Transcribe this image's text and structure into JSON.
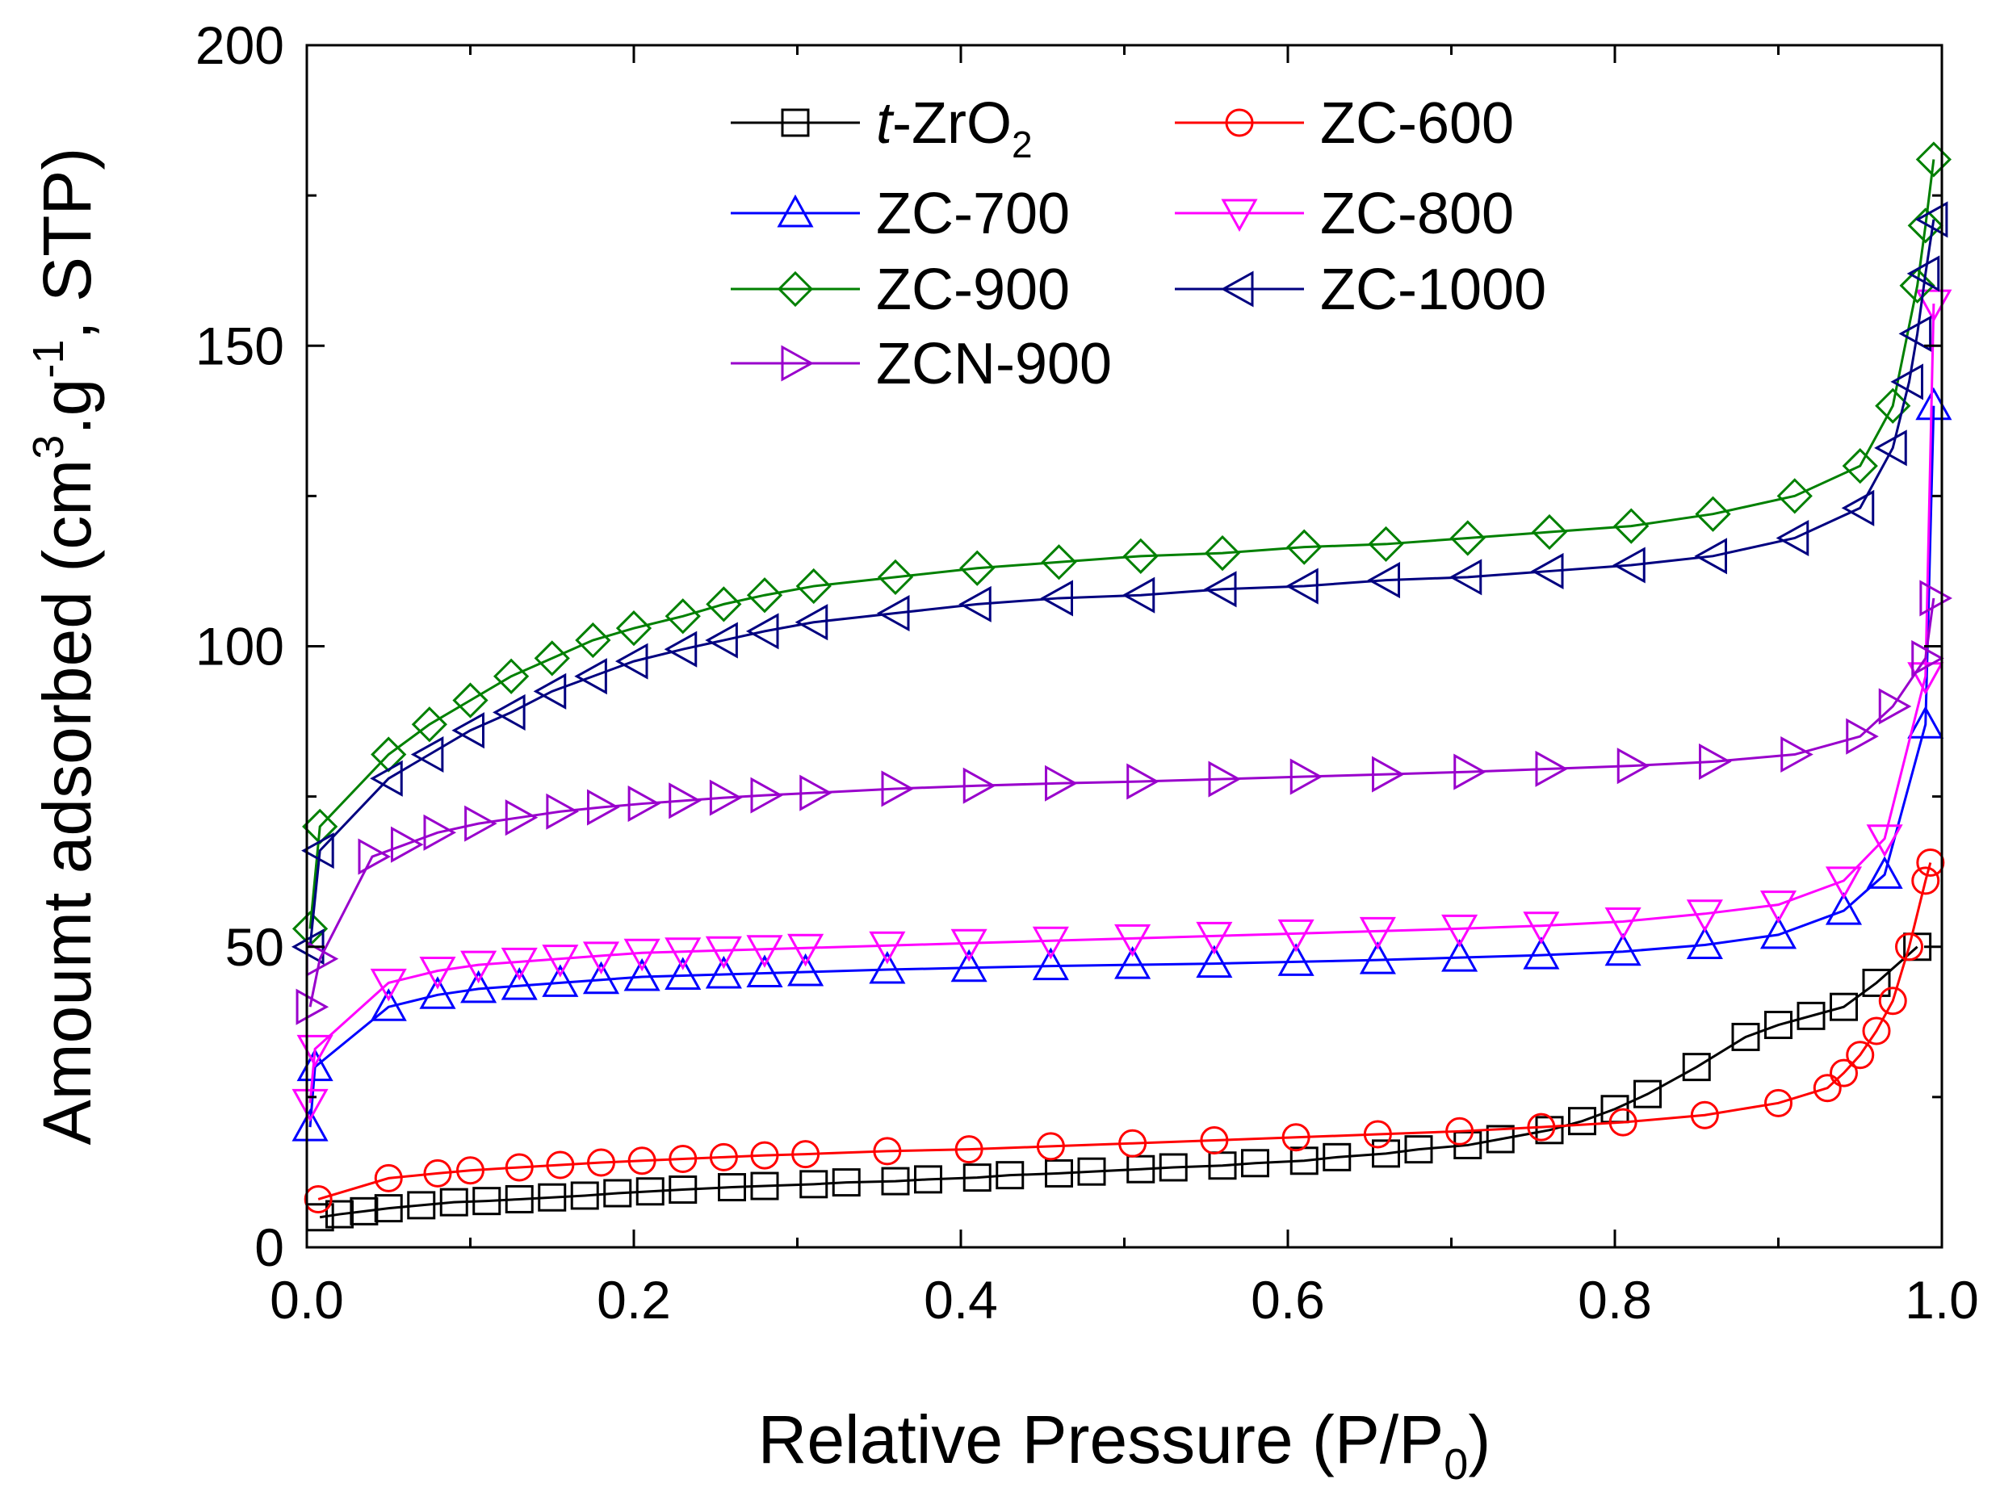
{
  "chart_data": {
    "type": "scatter",
    "title": "",
    "xlabel": "Relative Pressure (P/P0)",
    "xlabel_parts": {
      "main": "Relative Pressure (P/P",
      "sub": "0",
      "tail": ")"
    },
    "ylabel": "Amoumt adsorbed (cm3.g-1, STP)",
    "ylabel_parts": {
      "p1": "Amoumt adsorbed (cm",
      "sup1": "3",
      "p2": ".g",
      "sup2": "-1",
      "p3": ", STP)"
    },
    "xlim": [
      0.0,
      1.0
    ],
    "ylim": [
      0,
      200
    ],
    "x_ticks": [
      0.0,
      0.2,
      0.4,
      0.6,
      0.8,
      1.0
    ],
    "x_tick_labels": [
      "0.0",
      "0.2",
      "0.4",
      "0.6",
      "0.8",
      "1.0"
    ],
    "y_ticks": [
      0,
      50,
      100,
      150,
      200
    ],
    "y_tick_labels": [
      "0",
      "50",
      "100",
      "150",
      "200"
    ],
    "grid": false,
    "legend_position": "top",
    "series": [
      {
        "name": "t-ZrO2",
        "label_main": "-ZrO",
        "label_italic": "t",
        "label_sub": "2",
        "color": "#000000",
        "marker": "square",
        "x": [
          0.008,
          0.02,
          0.035,
          0.05,
          0.07,
          0.09,
          0.11,
          0.13,
          0.15,
          0.17,
          0.19,
          0.21,
          0.23,
          0.26,
          0.28,
          0.31,
          0.33,
          0.36,
          0.38,
          0.41,
          0.43,
          0.46,
          0.48,
          0.51,
          0.53,
          0.56,
          0.58,
          0.61,
          0.63,
          0.66,
          0.68,
          0.71,
          0.73,
          0.76,
          0.78,
          0.8,
          0.82,
          0.85,
          0.88,
          0.9,
          0.92,
          0.94,
          0.96,
          0.985
        ],
        "y": [
          5,
          5.5,
          6,
          6.5,
          7,
          7.5,
          7.7,
          8,
          8.3,
          8.6,
          9,
          9.3,
          9.6,
          10,
          10.2,
          10.5,
          10.8,
          11,
          11.3,
          11.6,
          12,
          12.3,
          12.6,
          13,
          13.3,
          13.6,
          14,
          14.4,
          15,
          15.6,
          16.3,
          17,
          18,
          19.5,
          21,
          23,
          25.5,
          30,
          35,
          37,
          38.5,
          40,
          44,
          50
        ]
      },
      {
        "name": "ZC-600",
        "label_main": "ZC-600",
        "color": "#ff0000",
        "marker": "circle",
        "x": [
          0.007,
          0.05,
          0.08,
          0.1,
          0.13,
          0.155,
          0.18,
          0.205,
          0.23,
          0.255,
          0.28,
          0.305,
          0.355,
          0.405,
          0.455,
          0.505,
          0.555,
          0.605,
          0.655,
          0.705,
          0.755,
          0.805,
          0.855,
          0.9,
          0.93,
          0.94,
          0.95,
          0.96,
          0.97,
          0.98,
          0.99,
          0.993
        ],
        "y": [
          8,
          11.5,
          12.3,
          12.8,
          13.3,
          13.7,
          14.1,
          14.4,
          14.7,
          15,
          15.3,
          15.5,
          16,
          16.3,
          16.8,
          17.3,
          17.8,
          18.3,
          18.8,
          19.3,
          20,
          20.8,
          22,
          24,
          26.5,
          29,
          32,
          36,
          41,
          50,
          61,
          64
        ]
      },
      {
        "name": "ZC-700",
        "label_main": "ZC-700",
        "color": "#0000ff",
        "marker": "triangle-up",
        "x": [
          0.002,
          0.005,
          0.05,
          0.08,
          0.105,
          0.13,
          0.155,
          0.18,
          0.205,
          0.23,
          0.255,
          0.28,
          0.305,
          0.355,
          0.405,
          0.455,
          0.505,
          0.555,
          0.605,
          0.655,
          0.705,
          0.755,
          0.805,
          0.855,
          0.9,
          0.94,
          0.965,
          0.99,
          0.995
        ],
        "y": [
          20,
          30,
          40,
          42,
          43,
          43.5,
          44,
          44.5,
          45,
          45.2,
          45.4,
          45.6,
          45.8,
          46.2,
          46.5,
          46.8,
          47,
          47.2,
          47.5,
          47.8,
          48.2,
          48.6,
          49.2,
          50.3,
          52,
          56,
          62,
          87,
          140
        ]
      },
      {
        "name": "ZC-800",
        "label_main": "ZC-800",
        "color": "#ff00ff",
        "marker": "triangle-down",
        "x": [
          0.002,
          0.005,
          0.05,
          0.08,
          0.105,
          0.13,
          0.155,
          0.18,
          0.205,
          0.23,
          0.255,
          0.28,
          0.305,
          0.355,
          0.405,
          0.455,
          0.505,
          0.555,
          0.605,
          0.655,
          0.705,
          0.755,
          0.805,
          0.855,
          0.9,
          0.94,
          0.965,
          0.99,
          0.995
        ],
        "y": [
          24,
          33,
          44,
          46,
          47,
          47.5,
          48,
          48.5,
          49,
          49.2,
          49.4,
          49.6,
          49.8,
          50.2,
          50.6,
          51,
          51.4,
          51.8,
          52.2,
          52.6,
          53,
          53.5,
          54.2,
          55.5,
          57,
          61,
          68,
          95,
          157
        ]
      },
      {
        "name": "ZC-900",
        "label_main": "ZC-900",
        "color": "#008000",
        "marker": "diamond",
        "x": [
          0.002,
          0.008,
          0.05,
          0.075,
          0.1,
          0.125,
          0.15,
          0.175,
          0.2,
          0.23,
          0.255,
          0.28,
          0.31,
          0.36,
          0.41,
          0.46,
          0.51,
          0.56,
          0.61,
          0.66,
          0.71,
          0.76,
          0.81,
          0.86,
          0.91,
          0.95,
          0.97,
          0.985,
          0.99,
          0.995
        ],
        "y": [
          53,
          70,
          82,
          87,
          91,
          95,
          98,
          101,
          103,
          105,
          107,
          108.5,
          110,
          111.5,
          113,
          114,
          115,
          115.5,
          116.5,
          117,
          118,
          119,
          120,
          122,
          125,
          130,
          140,
          160,
          170,
          181
        ]
      },
      {
        "name": "ZC-1000",
        "label_main": "ZC-1000",
        "color": "#000080",
        "marker": "triangle-left",
        "x": [
          0.002,
          0.008,
          0.05,
          0.075,
          0.1,
          0.125,
          0.15,
          0.175,
          0.2,
          0.23,
          0.255,
          0.28,
          0.31,
          0.36,
          0.41,
          0.46,
          0.51,
          0.56,
          0.61,
          0.66,
          0.71,
          0.76,
          0.81,
          0.86,
          0.91,
          0.95,
          0.97,
          0.98,
          0.985,
          0.99,
          0.995
        ],
        "y": [
          50,
          66,
          78,
          82,
          86,
          89,
          92.5,
          95,
          97.5,
          99.5,
          101,
          102.5,
          104,
          105.5,
          107,
          108,
          108.5,
          109.5,
          110,
          111,
          111.5,
          112.5,
          113.5,
          115,
          118,
          123,
          133,
          144,
          152,
          162,
          171
        ]
      },
      {
        "name": "ZCN-900",
        "label_main": "ZCN-900",
        "color": "#9900cc",
        "marker": "triangle-right",
        "x": [
          0.002,
          0.008,
          0.04,
          0.06,
          0.08,
          0.105,
          0.13,
          0.155,
          0.18,
          0.205,
          0.23,
          0.255,
          0.28,
          0.31,
          0.36,
          0.41,
          0.46,
          0.51,
          0.56,
          0.61,
          0.66,
          0.71,
          0.76,
          0.81,
          0.86,
          0.91,
          0.95,
          0.97,
          0.99,
          0.995
        ],
        "y": [
          40,
          48,
          65,
          67,
          69,
          70.5,
          71.5,
          72.5,
          73.2,
          73.8,
          74.3,
          74.8,
          75.2,
          75.6,
          76.3,
          76.8,
          77.2,
          77.5,
          77.9,
          78.3,
          78.7,
          79.1,
          79.6,
          80.1,
          80.8,
          82,
          85,
          90,
          98,
          108
        ]
      }
    ]
  }
}
